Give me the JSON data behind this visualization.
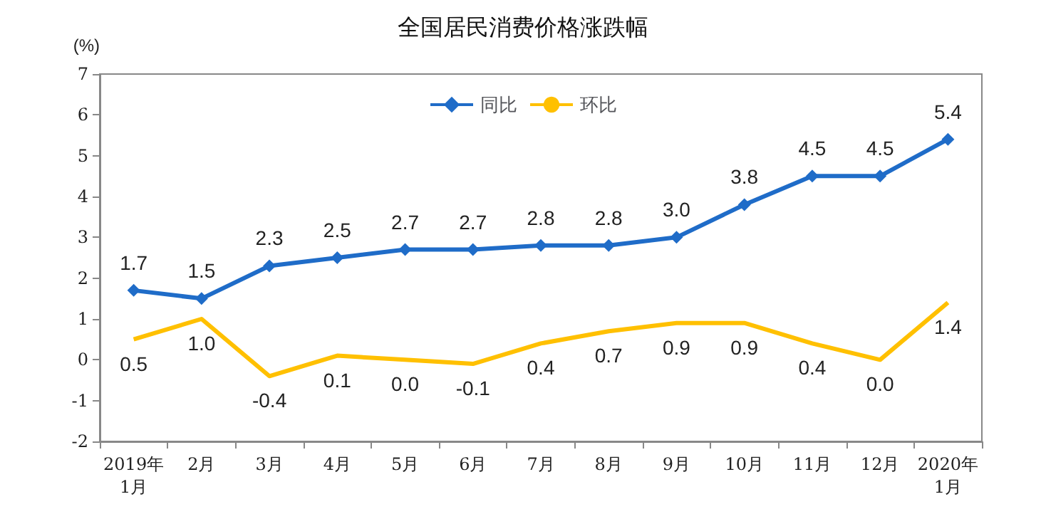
{
  "chart_data": {
    "type": "line",
    "title": "全国居民消费价格涨跌幅",
    "ylabel": "(%)",
    "categories": [
      "2019年\n1月",
      "2月",
      "3月",
      "4月",
      "5月",
      "6月",
      "7月",
      "8月",
      "9月",
      "10月",
      "11月",
      "12月",
      "2020年\n1月"
    ],
    "series": [
      {
        "name": "同比",
        "color": "#1f6cc8",
        "marker": "diamond",
        "values": [
          1.7,
          1.5,
          2.3,
          2.5,
          2.7,
          2.7,
          2.8,
          2.8,
          3.0,
          3.8,
          4.5,
          4.5,
          5.4
        ],
        "value_labels": [
          "1.7",
          "1.5",
          "2.3",
          "2.5",
          "2.7",
          "2.7",
          "2.8",
          "2.8",
          "3.0",
          "3.8",
          "4.5",
          "4.5",
          "5.4"
        ]
      },
      {
        "name": "环比",
        "color": "#ffc000",
        "marker": "none",
        "values": [
          0.5,
          1.0,
          -0.4,
          0.1,
          0.0,
          -0.1,
          0.4,
          0.7,
          0.9,
          0.9,
          0.4,
          0.0,
          1.4
        ],
        "value_labels": [
          "0.5",
          "1.0",
          "-0.4",
          "0.1",
          "0.0",
          "-0.1",
          "0.4",
          "0.7",
          "0.9",
          "0.9",
          "0.4",
          "0.0",
          "1.4"
        ]
      }
    ],
    "ylim": [
      -2,
      7
    ],
    "yticks": [
      -2,
      -1,
      0,
      1,
      2,
      3,
      4,
      5,
      6,
      7
    ],
    "grid": false,
    "legend": "top"
  }
}
